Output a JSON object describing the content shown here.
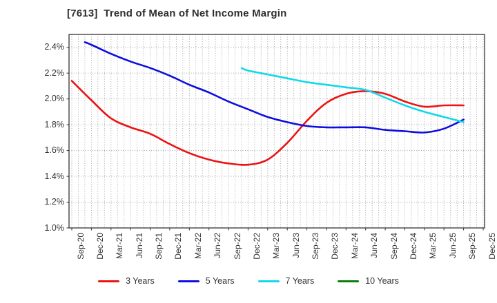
{
  "title": "[7613]  Trend of Mean of Net Income Margin",
  "chart_data": {
    "type": "line",
    "title": "[7613]  Trend of Mean of Net Income Margin",
    "x_tick_labels": [
      "Sep-20",
      "Dec-20",
      "Mar-21",
      "Jun-21",
      "Sep-21",
      "Dec-21",
      "Mar-22",
      "Jun-22",
      "Sep-22",
      "Dec-22",
      "Mar-23",
      "Jun-23",
      "Sep-23",
      "Dec-23",
      "Mar-24",
      "Jun-24",
      "Sep-24",
      "Dec-24",
      "Mar-25",
      "Jun-25",
      "Sep-25",
      "Dec-25"
    ],
    "y_tick_labels": [
      "1.0%",
      "1.2%",
      "1.4%",
      "1.6%",
      "1.8%",
      "2.0%",
      "2.2%",
      "2.4%"
    ],
    "ylim": [
      1.0,
      2.5
    ],
    "y_unit": "%",
    "grid": {
      "style": "dotted",
      "vertical": "monthly",
      "horizontal_step_pct": 0.2
    },
    "legend_position": "bottom",
    "axis_color": "#333333",
    "grid_color": "#9a9a9a",
    "series": [
      {
        "name": "3 Years",
        "color": "#ee1111",
        "x": [
          "Sep-20",
          "Dec-20",
          "Mar-21",
          "Jun-21",
          "Sep-21",
          "Dec-21",
          "Mar-22",
          "Jun-22",
          "Sep-22",
          "Dec-22",
          "Mar-23",
          "Jun-23",
          "Sep-23",
          "Dec-23",
          "Mar-24",
          "Jun-24",
          "Sep-24",
          "Dec-24",
          "Mar-25",
          "Jun-25",
          "Sep-25"
        ],
        "values": [
          2.14,
          1.99,
          1.85,
          1.78,
          1.73,
          1.65,
          1.58,
          1.53,
          1.5,
          1.49,
          1.53,
          1.66,
          1.83,
          1.97,
          2.04,
          2.06,
          2.04,
          1.98,
          1.94,
          1.95,
          1.95
        ]
      },
      {
        "name": "5 Years",
        "color": "#0d0de0",
        "x": [
          "Nov-20",
          "Dec-20",
          "Mar-21",
          "Jun-21",
          "Sep-21",
          "Dec-21",
          "Mar-22",
          "Jun-22",
          "Sep-22",
          "Dec-22",
          "Mar-23",
          "Jun-23",
          "Sep-23",
          "Dec-23",
          "Mar-24",
          "Jun-24",
          "Sep-24",
          "Dec-24",
          "Mar-25",
          "Jun-25",
          "Sep-25"
        ],
        "values": [
          2.44,
          2.42,
          2.35,
          2.29,
          2.24,
          2.18,
          2.11,
          2.05,
          1.98,
          1.92,
          1.86,
          1.82,
          1.79,
          1.78,
          1.78,
          1.78,
          1.76,
          1.75,
          1.74,
          1.77,
          1.84
        ]
      },
      {
        "name": "7 Years",
        "color": "#12d8e8",
        "x": [
          "Nov-22",
          "Dec-22",
          "Mar-23",
          "Jun-23",
          "Sep-23",
          "Dec-23",
          "Mar-24",
          "Jun-24",
          "Sep-24",
          "Dec-24",
          "Mar-25",
          "Jun-25",
          "Sep-25"
        ],
        "values": [
          2.24,
          2.22,
          2.19,
          2.16,
          2.13,
          2.11,
          2.09,
          2.07,
          2.01,
          1.95,
          1.9,
          1.86,
          1.82
        ]
      },
      {
        "name": "10 Years",
        "color": "#0b7d0b",
        "x": [],
        "values": []
      }
    ]
  }
}
